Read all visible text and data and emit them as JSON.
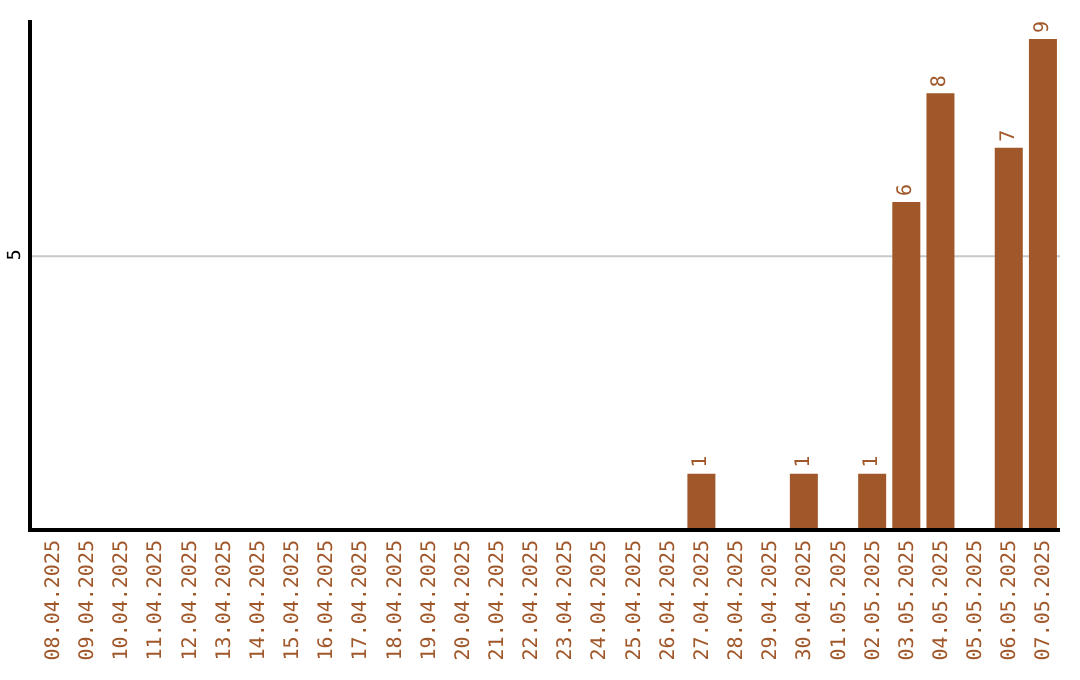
{
  "chart_data": {
    "type": "bar",
    "categories": [
      "08.04.2025",
      "09.04.2025",
      "10.04.2025",
      "11.04.2025",
      "12.04.2025",
      "13.04.2025",
      "14.04.2025",
      "15.04.2025",
      "16.04.2025",
      "17.04.2025",
      "18.04.2025",
      "19.04.2025",
      "20.04.2025",
      "21.04.2025",
      "22.04.2025",
      "23.04.2025",
      "24.04.2025",
      "25.04.2025",
      "26.04.2025",
      "27.04.2025",
      "28.04.2025",
      "29.04.2025",
      "30.04.2025",
      "01.05.2025",
      "02.05.2025",
      "03.05.2025",
      "04.05.2025",
      "05.05.2025",
      "06.05.2025",
      "07.05.2025"
    ],
    "values": [
      null,
      null,
      null,
      null,
      null,
      null,
      null,
      null,
      null,
      null,
      null,
      null,
      null,
      null,
      null,
      null,
      null,
      null,
      null,
      1,
      null,
      null,
      1,
      null,
      1,
      6,
      8,
      null,
      7,
      9
    ],
    "data_labels": true,
    "color": "#a0572a",
    "ylim": [
      0,
      9.35
    ],
    "ref_lines": [
      {
        "axis": "y",
        "value": 5,
        "label": "5",
        "color": "#c8c8c8"
      }
    ],
    "legend": false
  }
}
